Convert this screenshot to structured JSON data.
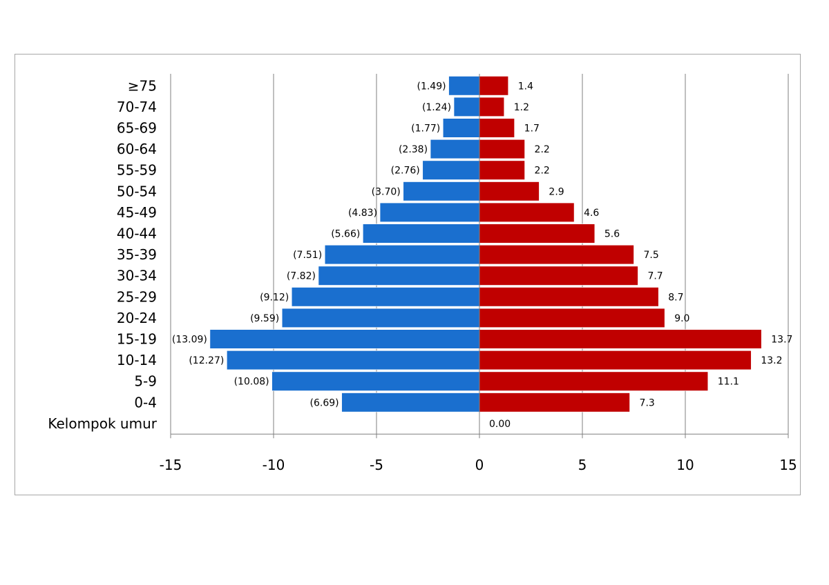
{
  "chart_data": {
    "type": "bar",
    "orientation": "horizontal",
    "layout": "population-pyramid",
    "categories": [
      "Kelompok umur",
      "0-4",
      "5-9",
      "10-14",
      "15-19",
      "20-24",
      "25-29",
      "30-34",
      "35-39",
      "40-44",
      "45-49",
      "50-54",
      "55-59",
      "60-64",
      "65-69",
      "70-74",
      "≥75"
    ],
    "series": [
      {
        "color": "#1a6fcf",
        "values": [
          0,
          -6.69,
          -10.08,
          -12.27,
          -13.09,
          -9.59,
          -9.12,
          -7.82,
          -7.51,
          -5.66,
          -4.83,
          -3.7,
          -2.76,
          -2.38,
          -1.77,
          -1.24,
          -1.49
        ],
        "labels": [
          "",
          "(6.69)",
          "(10.08)",
          "(12.27)",
          "(13.09)",
          "(9.59)",
          "(9.12)",
          "(7.82)",
          "(7.51)",
          "(5.66)",
          "(4.83)",
          "(3.70)",
          "(2.76)",
          "(2.38)",
          "(1.77)",
          "(1.24)",
          "(1.49)"
        ]
      },
      {
        "color": "#c00000",
        "values": [
          0,
          7.3,
          11.1,
          13.2,
          13.7,
          9.0,
          8.7,
          7.7,
          7.5,
          5.6,
          4.6,
          2.9,
          2.2,
          2.2,
          1.7,
          1.2,
          1.4
        ],
        "labels": [
          "0.00",
          "7.3",
          "11.1",
          "13.2",
          "13.7",
          "9.0",
          "8.7",
          "7.7",
          "7.5",
          "5.6",
          "4.6",
          "2.9",
          "2.2",
          "2.2",
          "1.7",
          "1.2",
          "1.4"
        ]
      }
    ],
    "xlim": [
      -15,
      15
    ],
    "xticks": [
      "-15",
      "-10",
      "-5",
      "0",
      "5",
      "10",
      "15"
    ],
    "grid": true,
    "legend": "none",
    "title": "",
    "xlabel": "",
    "ylabel": ""
  }
}
